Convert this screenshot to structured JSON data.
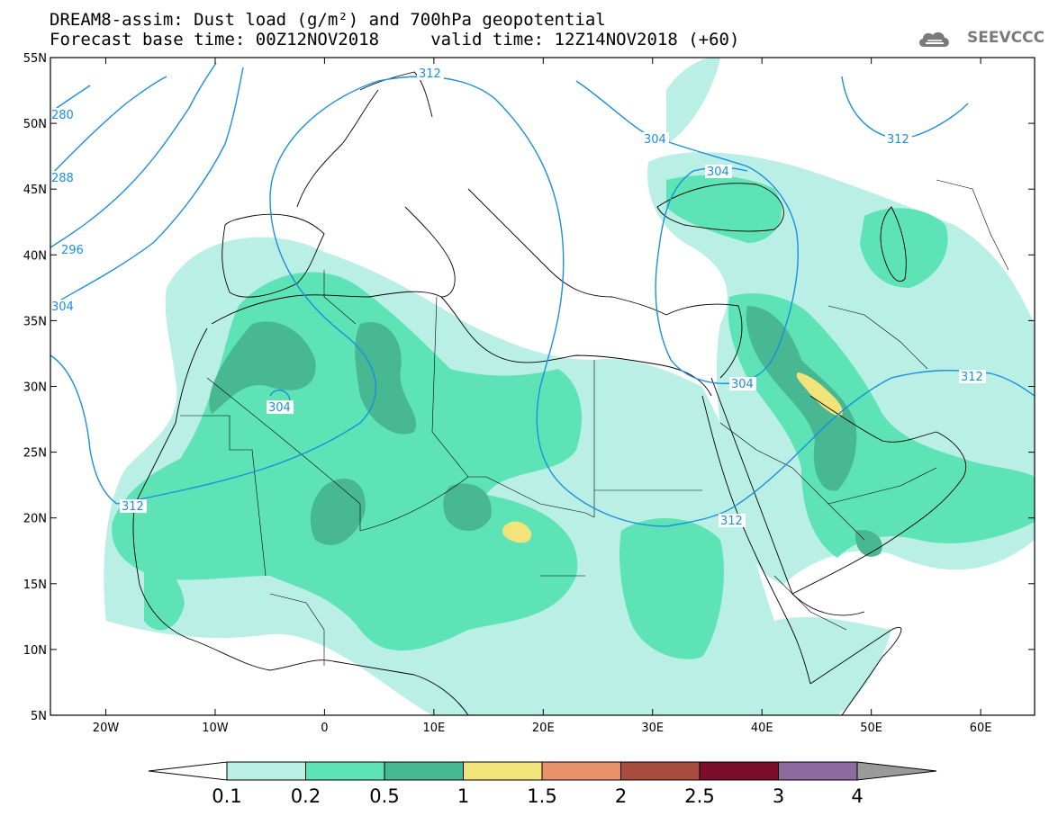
{
  "header": {
    "title_line1": "DREAM8-assim: Dust load (g/m²) and 700hPa geopotential",
    "title_line2": "Forecast base time: 00Z12NOV2018     valid time: 12Z14NOV2018 (+60)",
    "logo_text": "SEEVCCC",
    "logo_icon": "cloud-logo-icon"
  },
  "map": {
    "lat_labels": [
      "55N",
      "50N",
      "45N",
      "40N",
      "35N",
      "30N",
      "25N",
      "20N",
      "15N",
      "10N",
      "5N"
    ],
    "lon_labels": [
      "20W",
      "10W",
      "0",
      "10E",
      "20E",
      "30E",
      "40E",
      "50E",
      "60E"
    ],
    "contour_labels": [
      "312",
      "304",
      "312",
      "304",
      "280",
      "288",
      "296",
      "304",
      "304",
      "312",
      "304",
      "312",
      "312"
    ],
    "contour_color": "#1b8fe0"
  },
  "colorbar": {
    "labels": [
      "0.1",
      "0.2",
      "0.5",
      "1",
      "1.5",
      "2",
      "2.5",
      "3",
      "4"
    ],
    "colors": [
      "#b9efe5",
      "#5ee3b6",
      "#48b892",
      "#f2e47a",
      "#e9916a",
      "#a84c3e",
      "#7a0e2b",
      "#8d6aa0",
      "#9a9a9a"
    ],
    "underflow_color": "#ffffff",
    "overflow_color": "#9a9a9a"
  }
}
